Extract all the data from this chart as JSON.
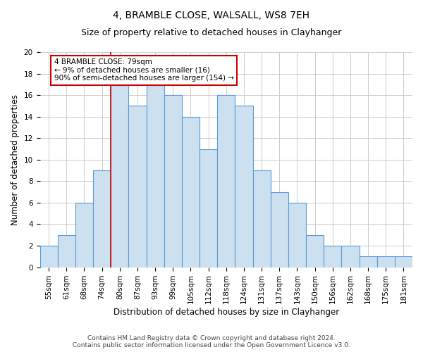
{
  "title": "4, BRAMBLE CLOSE, WALSALL, WS8 7EH",
  "subtitle": "Size of property relative to detached houses in Clayhanger",
  "xlabel": "Distribution of detached houses by size in Clayhanger",
  "ylabel": "Number of detached properties",
  "categories": [
    "55sqm",
    "61sqm",
    "68sqm",
    "74sqm",
    "80sqm",
    "87sqm",
    "93sqm",
    "99sqm",
    "105sqm",
    "112sqm",
    "118sqm",
    "124sqm",
    "131sqm",
    "137sqm",
    "143sqm",
    "150sqm",
    "156sqm",
    "162sqm",
    "168sqm",
    "175sqm",
    "181sqm"
  ],
  "values": [
    2,
    3,
    6,
    9,
    17,
    15,
    17,
    16,
    14,
    11,
    16,
    15,
    9,
    7,
    6,
    3,
    2,
    2,
    1,
    1,
    1
  ],
  "bar_color": "#cce0f0",
  "bar_edge_color": "#5b9bd5",
  "annotation_line1": "4 BRAMBLE CLOSE: 79sqm",
  "annotation_line2": "← 9% of detached houses are smaller (16)",
  "annotation_line3": "90% of semi-detached houses are larger (154) →",
  "vline_color": "#cc0000",
  "annotation_box_edge": "#cc0000",
  "ylim": [
    0,
    20
  ],
  "yticks": [
    0,
    2,
    4,
    6,
    8,
    10,
    12,
    14,
    16,
    18,
    20
  ],
  "grid_color": "#cccccc",
  "background_color": "#ffffff",
  "footer_line1": "Contains HM Land Registry data © Crown copyright and database right 2024.",
  "footer_line2": "Contains public sector information licensed under the Open Government Licence v3.0.",
  "title_fontsize": 10,
  "subtitle_fontsize": 9,
  "tick_fontsize": 7.5,
  "xlabel_fontsize": 8.5,
  "ylabel_fontsize": 8.5,
  "footer_fontsize": 6.5,
  "vline_x_index": 3.5
}
